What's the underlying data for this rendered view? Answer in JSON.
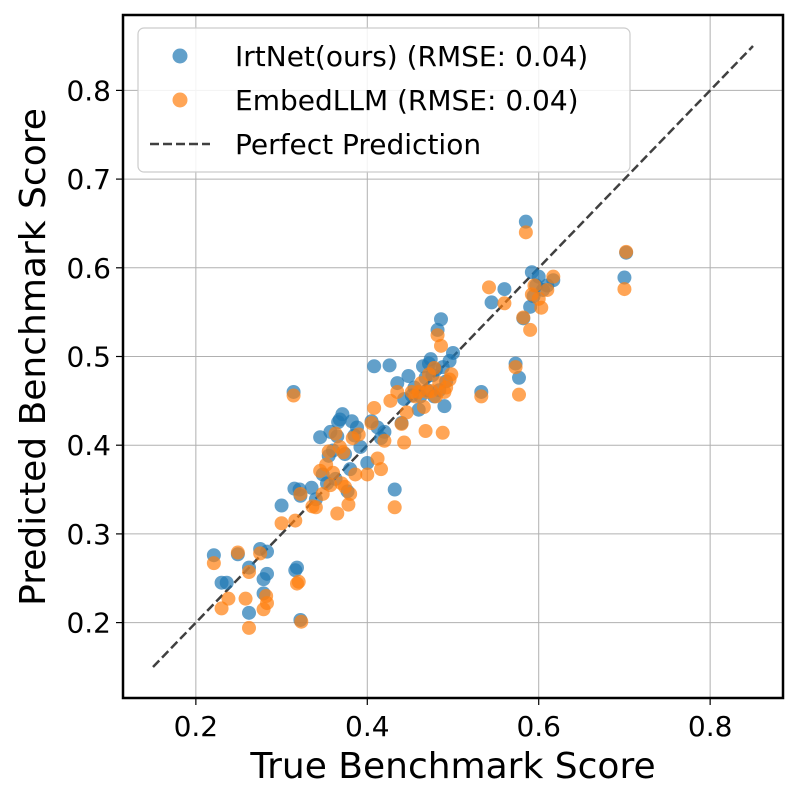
{
  "chart_data": {
    "type": "scatter",
    "title": "",
    "xlabel": "True Benchmark Score",
    "ylabel": "Predicted Benchmark Score",
    "xlim": [
      0.115,
      0.885
    ],
    "ylim": [
      0.115,
      0.885
    ],
    "xticks": [
      0.2,
      0.4,
      0.6,
      0.8
    ],
    "yticks": [
      0.2,
      0.3,
      0.4,
      0.5,
      0.6,
      0.7,
      0.8
    ],
    "xtick_labels": [
      "0.2",
      "0.4",
      "0.6",
      "0.8"
    ],
    "ytick_labels": [
      "0.2",
      "0.3",
      "0.4",
      "0.5",
      "0.6",
      "0.7",
      "0.8"
    ],
    "grid": true,
    "legend_position": "top-left",
    "reference_line": {
      "name": "Perfect Prediction",
      "from": [
        0.15,
        0.15
      ],
      "to": [
        0.85,
        0.85
      ],
      "color": "#404040",
      "style": "dashed"
    },
    "series": [
      {
        "name": "IrtNet(ours) (RMSE: 0.04)",
        "color": "#1f77b4",
        "points": [
          [
            0.221,
            0.276
          ],
          [
            0.23,
            0.245
          ],
          [
            0.236,
            0.245
          ],
          [
            0.249,
            0.277
          ],
          [
            0.262,
            0.262
          ],
          [
            0.262,
            0.211
          ],
          [
            0.275,
            0.283
          ],
          [
            0.279,
            0.249
          ],
          [
            0.283,
            0.255
          ],
          [
            0.283,
            0.28
          ],
          [
            0.279,
            0.233
          ],
          [
            0.3,
            0.332
          ],
          [
            0.314,
            0.46
          ],
          [
            0.315,
            0.351
          ],
          [
            0.316,
            0.259
          ],
          [
            0.318,
            0.262
          ],
          [
            0.321,
            0.35
          ],
          [
            0.322,
            0.343
          ],
          [
            0.322,
            0.203
          ],
          [
            0.335,
            0.352
          ],
          [
            0.34,
            0.339
          ],
          [
            0.345,
            0.409
          ],
          [
            0.348,
            0.367
          ],
          [
            0.353,
            0.357
          ],
          [
            0.355,
            0.388
          ],
          [
            0.357,
            0.415
          ],
          [
            0.36,
            0.394
          ],
          [
            0.363,
            0.362
          ],
          [
            0.365,
            0.41
          ],
          [
            0.366,
            0.426
          ],
          [
            0.368,
            0.429
          ],
          [
            0.371,
            0.435
          ],
          [
            0.374,
            0.39
          ],
          [
            0.377,
            0.348
          ],
          [
            0.38,
            0.373
          ],
          [
            0.382,
            0.427
          ],
          [
            0.385,
            0.411
          ],
          [
            0.388,
            0.42
          ],
          [
            0.392,
            0.398
          ],
          [
            0.4,
            0.38
          ],
          [
            0.405,
            0.427
          ],
          [
            0.408,
            0.489
          ],
          [
            0.412,
            0.42
          ],
          [
            0.416,
            0.408
          ],
          [
            0.42,
            0.415
          ],
          [
            0.426,
            0.49
          ],
          [
            0.432,
            0.35
          ],
          [
            0.435,
            0.47
          ],
          [
            0.44,
            0.425
          ],
          [
            0.443,
            0.452
          ],
          [
            0.448,
            0.478
          ],
          [
            0.452,
            0.456
          ],
          [
            0.455,
            0.465
          ],
          [
            0.46,
            0.44
          ],
          [
            0.462,
            0.455
          ],
          [
            0.465,
            0.489
          ],
          [
            0.468,
            0.476
          ],
          [
            0.47,
            0.462
          ],
          [
            0.472,
            0.492
          ],
          [
            0.474,
            0.497
          ],
          [
            0.476,
            0.479
          ],
          [
            0.478,
            0.455
          ],
          [
            0.48,
            0.485
          ],
          [
            0.482,
            0.53
          ],
          [
            0.484,
            0.462
          ],
          [
            0.486,
            0.542
          ],
          [
            0.488,
            0.488
          ],
          [
            0.49,
            0.444
          ],
          [
            0.492,
            0.472
          ],
          [
            0.496,
            0.495
          ],
          [
            0.5,
            0.504
          ],
          [
            0.533,
            0.46
          ],
          [
            0.545,
            0.561
          ],
          [
            0.56,
            0.576
          ],
          [
            0.573,
            0.492
          ],
          [
            0.577,
            0.476
          ],
          [
            0.582,
            0.543
          ],
          [
            0.585,
            0.652
          ],
          [
            0.59,
            0.556
          ],
          [
            0.592,
            0.595
          ],
          [
            0.594,
            0.568
          ],
          [
            0.597,
            0.58
          ],
          [
            0.6,
            0.59
          ],
          [
            0.605,
            0.575
          ],
          [
            0.61,
            0.58
          ],
          [
            0.617,
            0.586
          ],
          [
            0.7,
            0.589
          ],
          [
            0.702,
            0.617
          ]
        ]
      },
      {
        "name": "EmbedLLM (RMSE: 0.04)",
        "color": "#ff7f0e",
        "points": [
          [
            0.221,
            0.267
          ],
          [
            0.23,
            0.216
          ],
          [
            0.238,
            0.227
          ],
          [
            0.249,
            0.279
          ],
          [
            0.258,
            0.227
          ],
          [
            0.262,
            0.194
          ],
          [
            0.262,
            0.257
          ],
          [
            0.275,
            0.278
          ],
          [
            0.279,
            0.215
          ],
          [
            0.282,
            0.23
          ],
          [
            0.283,
            0.222
          ],
          [
            0.3,
            0.312
          ],
          [
            0.314,
            0.456
          ],
          [
            0.316,
            0.315
          ],
          [
            0.318,
            0.244
          ],
          [
            0.32,
            0.246
          ],
          [
            0.322,
            0.345
          ],
          [
            0.323,
            0.201
          ],
          [
            0.336,
            0.331
          ],
          [
            0.34,
            0.33
          ],
          [
            0.345,
            0.371
          ],
          [
            0.348,
            0.345
          ],
          [
            0.352,
            0.378
          ],
          [
            0.355,
            0.393
          ],
          [
            0.357,
            0.355
          ],
          [
            0.36,
            0.369
          ],
          [
            0.363,
            0.413
          ],
          [
            0.365,
            0.323
          ],
          [
            0.368,
            0.398
          ],
          [
            0.37,
            0.357
          ],
          [
            0.372,
            0.392
          ],
          [
            0.374,
            0.353
          ],
          [
            0.378,
            0.333
          ],
          [
            0.38,
            0.345
          ],
          [
            0.383,
            0.408
          ],
          [
            0.386,
            0.367
          ],
          [
            0.39,
            0.412
          ],
          [
            0.4,
            0.367
          ],
          [
            0.405,
            0.425
          ],
          [
            0.408,
            0.442
          ],
          [
            0.412,
            0.385
          ],
          [
            0.416,
            0.373
          ],
          [
            0.42,
            0.405
          ],
          [
            0.427,
            0.45
          ],
          [
            0.432,
            0.33
          ],
          [
            0.435,
            0.46
          ],
          [
            0.44,
            0.424
          ],
          [
            0.443,
            0.403
          ],
          [
            0.446,
            0.437
          ],
          [
            0.452,
            0.46
          ],
          [
            0.456,
            0.455
          ],
          [
            0.46,
            0.46
          ],
          [
            0.463,
            0.47
          ],
          [
            0.466,
            0.443
          ],
          [
            0.468,
            0.416
          ],
          [
            0.47,
            0.46
          ],
          [
            0.472,
            0.48
          ],
          [
            0.475,
            0.461
          ],
          [
            0.478,
            0.487
          ],
          [
            0.48,
            0.455
          ],
          [
            0.482,
            0.524
          ],
          [
            0.484,
            0.47
          ],
          [
            0.486,
            0.512
          ],
          [
            0.488,
            0.414
          ],
          [
            0.49,
            0.46
          ],
          [
            0.492,
            0.465
          ],
          [
            0.496,
            0.474
          ],
          [
            0.498,
            0.48
          ],
          [
            0.533,
            0.455
          ],
          [
            0.542,
            0.578
          ],
          [
            0.56,
            0.56
          ],
          [
            0.573,
            0.488
          ],
          [
            0.577,
            0.457
          ],
          [
            0.582,
            0.544
          ],
          [
            0.585,
            0.64
          ],
          [
            0.59,
            0.53
          ],
          [
            0.592,
            0.57
          ],
          [
            0.595,
            0.58
          ],
          [
            0.6,
            0.565
          ],
          [
            0.603,
            0.555
          ],
          [
            0.61,
            0.575
          ],
          [
            0.617,
            0.59
          ],
          [
            0.7,
            0.576
          ],
          [
            0.702,
            0.618
          ]
        ]
      }
    ]
  }
}
